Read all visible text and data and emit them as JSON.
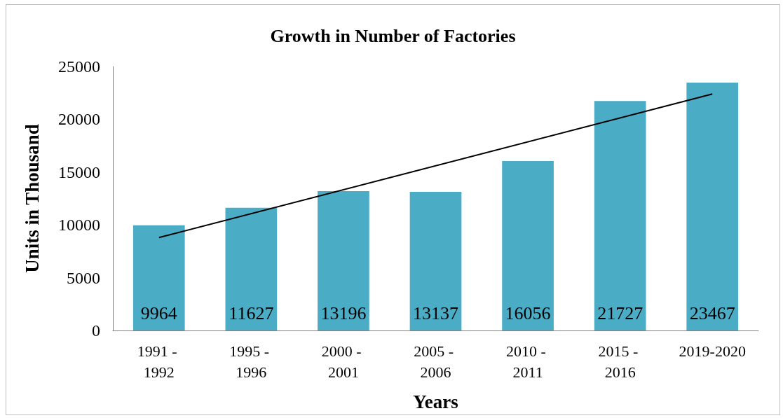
{
  "chart_data": {
    "type": "bar",
    "title": "Growth in Number of Factories",
    "xlabel": "Years",
    "ylabel": "Units in Thousand",
    "categories": [
      "1991 - 1992",
      "1995 - 1996",
      "2000 - 2001",
      "2005 - 2006",
      "2010 - 2011",
      "2015 - 2016",
      "2019-2020"
    ],
    "series": [
      {
        "color": "#4bacc6",
        "values": [
          9964,
          11627,
          13196,
          13137,
          16056,
          21727,
          23467
        ],
        "value_labels": [
          "9964",
          "11627",
          "13196",
          "13137",
          "16056",
          "21727",
          "23467"
        ]
      },
      {
        "type": "line",
        "color": "#000000",
        "x": [
          "1991 - 1992",
          "2019-2020"
        ],
        "values": [
          8800,
          22400
        ],
        "marker": "none"
      }
    ],
    "ylim": [
      0,
      25000
    ],
    "yticks": [
      0,
      5000,
      10000,
      15000,
      20000,
      25000
    ],
    "grid": false
  }
}
